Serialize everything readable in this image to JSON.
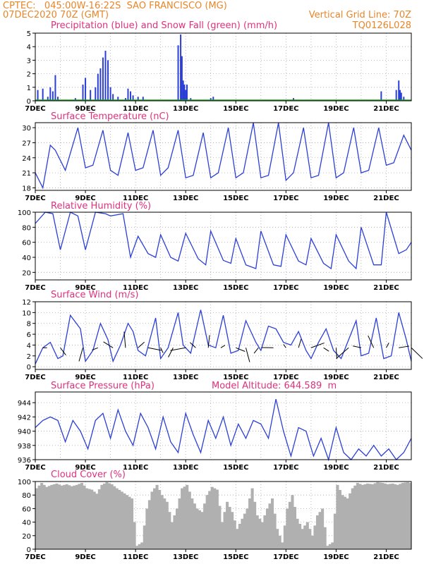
{
  "header": {
    "line1_left": "CPTEC:   045:00W-16:22S  SAO FRANCISCO (MG)",
    "line2_left": "07DEC2020 70Z (GMT)",
    "line2_right": "Vertical Grid Line: 70Z",
    "line3_right": "TQ0126L028"
  },
  "colors": {
    "header": "#e8862a",
    "title": "#e0307e",
    "line": "#2b3fd6",
    "snow": "#1aa31a",
    "cloud": "#b0b0b0"
  },
  "x_labels": [
    "7DEC",
    "9DEC",
    "11DEC",
    "13DEC",
    "15DEC",
    "17DEC",
    "19DEC",
    "21DEC"
  ],
  "chart_data": [
    {
      "type": "bar",
      "title": "Precipitation (blue) and Snow Fall (green) (mm/h)",
      "ylim": [
        0,
        5
      ],
      "yticks": [
        0,
        1,
        2,
        3,
        4,
        5
      ],
      "x_range_days": [
        7,
        22
      ],
      "series": [
        {
          "name": "Precipitation",
          "color": "#2b3fd6",
          "x": [
            7.1,
            7.3,
            7.5,
            7.6,
            7.7,
            7.8,
            7.9,
            8.6,
            8.9,
            9.0,
            9.2,
            9.4,
            9.5,
            9.6,
            9.7,
            9.8,
            9.9,
            10.0,
            10.1,
            10.3,
            10.6,
            10.7,
            10.8,
            10.9,
            11.1,
            11.3,
            12.7,
            12.8,
            12.85,
            12.9,
            12.95,
            13.0,
            13.05,
            13.2,
            14.0,
            14.1,
            17.3,
            20.8,
            21.4,
            21.5,
            21.55,
            21.6,
            21.7
          ],
          "values": [
            0.8,
            0.9,
            0.3,
            1.0,
            0.7,
            1.9,
            0.3,
            0.2,
            1.2,
            1.7,
            0.8,
            1.0,
            2.0,
            2.4,
            3.2,
            3.7,
            3.0,
            1.0,
            0.5,
            0.3,
            0.2,
            0.9,
            0.7,
            0.4,
            0.3,
            0.3,
            4.1,
            4.9,
            3.3,
            1.5,
            1.2,
            0.8,
            1.2,
            0.2,
            0.2,
            0.3,
            0.2,
            0.7,
            0.8,
            1.5,
            0.8,
            0.6,
            0.3
          ]
        },
        {
          "name": "Snow Fall",
          "color": "#1aa31a",
          "x": [],
          "values": []
        }
      ]
    },
    {
      "type": "line",
      "title": "Surface Temperature (nC)",
      "ylim": [
        17.5,
        31
      ],
      "yticks": [
        18,
        21,
        24,
        27,
        30
      ],
      "x_range_days": [
        7,
        22
      ],
      "series": [
        {
          "name": "",
          "x": [
            7.0,
            7.3,
            7.6,
            7.8,
            8.2,
            8.7,
            9.0,
            9.3,
            9.7,
            10.0,
            10.3,
            10.7,
            11.0,
            11.3,
            11.7,
            12.0,
            12.3,
            12.7,
            13.0,
            13.3,
            13.7,
            14.0,
            14.3,
            14.7,
            15.0,
            15.3,
            15.7,
            16.0,
            16.3,
            16.7,
            17.0,
            17.3,
            17.7,
            18.0,
            18.3,
            18.7,
            19.0,
            19.3,
            19.7,
            20.0,
            20.3,
            20.7,
            21.0,
            21.3,
            21.7,
            22.0
          ],
          "values": [
            21.0,
            18.0,
            26.5,
            25.5,
            21.5,
            30.0,
            22.0,
            22.5,
            29.5,
            21.5,
            20.5,
            29.0,
            21.5,
            22.0,
            29.5,
            20.5,
            22.0,
            29.5,
            20.0,
            20.5,
            29.0,
            20.0,
            21.0,
            30.0,
            20.0,
            21.0,
            31.0,
            20.0,
            20.5,
            31.0,
            19.5,
            21.0,
            30.0,
            20.0,
            20.5,
            31.0,
            20.0,
            21.0,
            30.0,
            21.0,
            21.5,
            30.0,
            22.5,
            23.0,
            28.5,
            25.5
          ]
        }
      ]
    },
    {
      "type": "line",
      "title": "Relative Humidity (%)",
      "ylim": [
        10,
        100
      ],
      "yticks": [
        20,
        40,
        60,
        80,
        100
      ],
      "x_range_days": [
        7,
        22
      ],
      "series": [
        {
          "name": "",
          "x": [
            7.0,
            7.4,
            7.7,
            8.0,
            8.4,
            8.7,
            9.0,
            9.4,
            9.8,
            10.0,
            10.5,
            10.8,
            11.1,
            11.5,
            11.8,
            12.0,
            12.4,
            12.7,
            13.0,
            13.5,
            13.8,
            14.0,
            14.5,
            14.8,
            15.0,
            15.4,
            15.8,
            16.0,
            16.5,
            16.8,
            17.0,
            17.5,
            17.8,
            18.0,
            18.5,
            18.8,
            19.0,
            19.5,
            19.8,
            20.0,
            20.5,
            20.8,
            21.0,
            21.5,
            21.8,
            22.0
          ],
          "values": [
            85,
            100,
            98,
            50,
            100,
            95,
            50,
            100,
            98,
            95,
            98,
            40,
            68,
            45,
            40,
            70,
            40,
            35,
            72,
            38,
            30,
            75,
            36,
            32,
            65,
            30,
            25,
            75,
            30,
            28,
            70,
            35,
            30,
            65,
            32,
            25,
            70,
            35,
            25,
            80,
            30,
            30,
            100,
            45,
            50,
            60
          ]
        }
      ]
    },
    {
      "type": "line",
      "title": "Surface Wind (m/s)",
      "ylim": [
        -0.5,
        12
      ],
      "yticks": [
        0,
        2,
        4,
        6,
        8,
        10,
        12
      ],
      "x_range_days": [
        7,
        22
      ],
      "series": [
        {
          "name": "",
          "x": [
            7.0,
            7.3,
            7.6,
            7.9,
            8.1,
            8.4,
            8.8,
            9.0,
            9.3,
            9.6,
            9.9,
            10.1,
            10.4,
            10.7,
            10.9,
            11.1,
            11.4,
            11.8,
            12.0,
            12.3,
            12.7,
            12.9,
            13.2,
            13.6,
            13.9,
            14.2,
            14.5,
            14.8,
            15.1,
            15.4,
            15.8,
            16.0,
            16.3,
            16.6,
            16.9,
            17.2,
            17.5,
            17.8,
            18.0,
            18.3,
            18.6,
            18.9,
            19.2,
            19.5,
            19.8,
            20.0,
            20.3,
            20.6,
            20.9,
            21.2,
            21.5,
            21.8,
            22.0
          ],
          "values": [
            0.5,
            3.5,
            4.5,
            1.5,
            2.0,
            9.5,
            7.0,
            1.0,
            3.0,
            8.0,
            5.0,
            1.0,
            4.0,
            8.0,
            6.5,
            3.0,
            2.0,
            9.0,
            1.5,
            3.5,
            10.0,
            4.0,
            2.5,
            10.5,
            4.0,
            3.5,
            9.5,
            2.5,
            3.0,
            8.5,
            4.5,
            3.0,
            7.5,
            7.0,
            4.5,
            4.0,
            6.5,
            3.0,
            1.5,
            4.5,
            7.0,
            3.0,
            1.5,
            5.0,
            8.5,
            2.0,
            2.5,
            9.0,
            1.5,
            2.0,
            10.0,
            5.0,
            1.0
          ]
        }
      ],
      "arrows": {
        "x": [
          7.3,
          8.0,
          8.9,
          9.5,
          10.1,
          10.6,
          11.1,
          11.5,
          12.0,
          12.5,
          13.0,
          13.4,
          13.9,
          14.4,
          15.0,
          15.4,
          15.9,
          16.5,
          17.0,
          17.5,
          18.0,
          18.5,
          19.0,
          19.5,
          20.0,
          20.5,
          21.0,
          21.5,
          22.0
        ]
      }
    },
    {
      "type": "line",
      "title": "Surface Pressure (hPa)",
      "annotation": "Model Altitude: 644.589  m",
      "ylim": [
        936,
        945.5
      ],
      "yticks": [
        936,
        938,
        940,
        942,
        944
      ],
      "x_range_days": [
        7,
        22
      ],
      "series": [
        {
          "name": "",
          "x": [
            7.0,
            7.3,
            7.6,
            7.9,
            8.2,
            8.5,
            8.8,
            9.1,
            9.4,
            9.7,
            10.0,
            10.3,
            10.6,
            10.9,
            11.2,
            11.5,
            11.8,
            12.1,
            12.4,
            12.7,
            13.0,
            13.3,
            13.6,
            13.9,
            14.2,
            14.5,
            14.8,
            15.1,
            15.4,
            15.7,
            16.0,
            16.3,
            16.6,
            16.9,
            17.2,
            17.5,
            17.8,
            18.1,
            18.4,
            18.7,
            19.0,
            19.3,
            19.6,
            19.9,
            20.2,
            20.5,
            20.8,
            21.1,
            21.4,
            21.7,
            22.0
          ],
          "values": [
            940.5,
            941.5,
            942.0,
            941.5,
            938.5,
            941.5,
            940.0,
            937.5,
            941.5,
            942.5,
            939.0,
            943.0,
            940.0,
            938.0,
            942.5,
            940.5,
            937.5,
            942.0,
            938.5,
            937.0,
            942.5,
            939.5,
            937.0,
            941.5,
            939.0,
            942.0,
            938.0,
            941.0,
            939.0,
            941.5,
            941.0,
            939.0,
            944.5,
            940.0,
            936.5,
            940.5,
            940.0,
            936.5,
            939.0,
            936.0,
            940.5,
            937.0,
            936.0,
            937.5,
            936.5,
            938.0,
            936.5,
            937.5,
            936.0,
            937.0,
            939.0
          ]
        }
      ]
    },
    {
      "type": "area",
      "title": "Cloud Cover (%)",
      "ylim": [
        0,
        100
      ],
      "yticks": [
        0,
        20,
        40,
        60,
        80,
        100
      ],
      "x_range_days": [
        7,
        22
      ],
      "series": [
        {
          "name": "",
          "x": [
            7.0,
            7.2,
            7.4,
            7.6,
            7.8,
            8.0,
            8.2,
            8.4,
            8.6,
            8.8,
            9.0,
            9.2,
            9.4,
            9.6,
            9.8,
            10.0,
            10.2,
            10.4,
            10.6,
            10.8,
            11.0,
            11.2,
            11.4,
            11.6,
            11.8,
            12.0,
            12.2,
            12.4,
            12.6,
            12.8,
            13.0,
            13.2,
            13.4,
            13.6,
            13.8,
            14.0,
            14.2,
            14.4,
            14.6,
            14.8,
            15.0,
            15.2,
            15.4,
            15.6,
            15.8,
            16.0,
            16.2,
            16.4,
            16.6,
            16.8,
            17.0,
            17.2,
            17.4,
            17.6,
            17.8,
            18.0,
            18.2,
            18.4,
            18.6,
            18.8,
            19.0,
            19.2,
            19.4,
            19.6,
            19.8,
            20.0,
            20.2,
            20.4,
            20.6,
            20.8,
            21.0,
            21.2,
            21.4,
            21.6,
            21.8,
            22.0
          ],
          "values": [
            90,
            98,
            92,
            95,
            97,
            94,
            96,
            93,
            95,
            98,
            90,
            88,
            82,
            95,
            99,
            96,
            90,
            85,
            80,
            75,
            5,
            10,
            60,
            85,
            95,
            80,
            70,
            40,
            60,
            90,
            95,
            75,
            60,
            55,
            80,
            92,
            88,
            40,
            70,
            55,
            30,
            45,
            60,
            90,
            50,
            40,
            60,
            75,
            30,
            10,
            60,
            80,
            45,
            30,
            40,
            20,
            50,
            60,
            5,
            10,
            95,
            80,
            75,
            90,
            98,
            95,
            97,
            96,
            99,
            98,
            96,
            97,
            95,
            98,
            99,
            97
          ]
        }
      ]
    }
  ]
}
